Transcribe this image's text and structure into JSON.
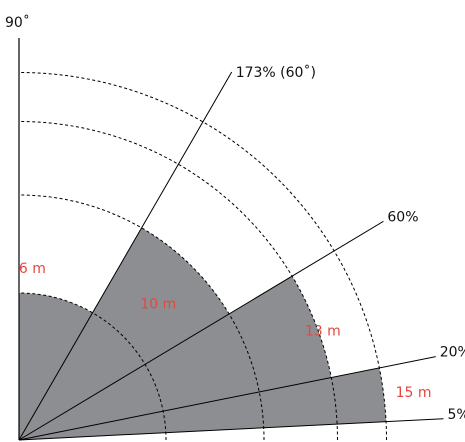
{
  "vertical_axis_label": "90˚",
  "colors": {
    "sector_fill": "#8d8e92",
    "line": "#000000",
    "distance_label": "#e2483f"
  },
  "ray_labels": [
    {
      "text": "173% (60˚)",
      "slope_percent": 173,
      "angle_deg": 60
    },
    {
      "text": "60%",
      "slope_percent": 60,
      "angle_deg": 31
    },
    {
      "text": "20%",
      "slope_percent": 20,
      "angle_deg": 11.3
    },
    {
      "text": "5%",
      "slope_percent": 5,
      "angle_deg": 2.9
    }
  ],
  "sectors": [
    {
      "distance_m": 6,
      "label": "6 m",
      "from_slope_percent": 173,
      "to_slope_percent": 100000
    },
    {
      "distance_m": 10,
      "label": "10 m",
      "from_slope_percent": 60,
      "to_slope_percent": 173
    },
    {
      "distance_m": 13,
      "label": "13 m",
      "from_slope_percent": 20,
      "to_slope_percent": 60
    },
    {
      "distance_m": 15,
      "label": "15 m",
      "from_slope_percent": 5,
      "to_slope_percent": 20
    }
  ],
  "dashed_arcs_m": [
    6,
    10,
    13,
    15
  ]
}
